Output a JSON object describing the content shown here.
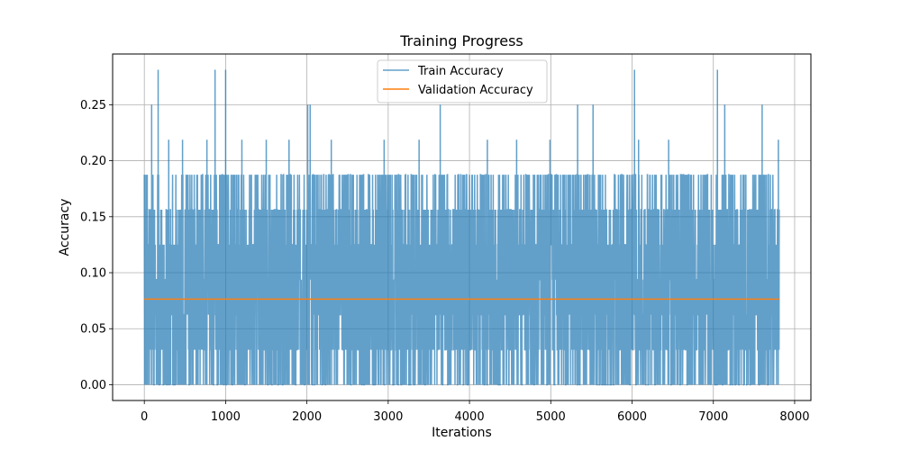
{
  "chart_data": {
    "type": "line",
    "title": "Training Progress",
    "xlabel": "Iterations",
    "ylabel": "Accuracy",
    "xlim": [
      -390,
      8200
    ],
    "ylim": [
      -0.0141,
      0.2953
    ],
    "xticks": [
      0,
      1000,
      2000,
      3000,
      4000,
      5000,
      6000,
      7000,
      8000
    ],
    "xtick_labels": [
      "0",
      "1000",
      "2000",
      "3000",
      "4000",
      "5000",
      "6000",
      "7000",
      "8000"
    ],
    "yticks": [
      0.0,
      0.05,
      0.1,
      0.15,
      0.2,
      0.25
    ],
    "ytick_labels": [
      "0.00",
      "0.05",
      "0.10",
      "0.15",
      "0.20",
      "0.25"
    ],
    "grid": true,
    "legend_position": "top-center",
    "series": [
      {
        "name": "Train Accuracy",
        "color": "#1f77b4",
        "opacity": 0.7,
        "x_range": [
          0,
          7810
        ],
        "value_levels": [
          0.0,
          0.03125,
          0.0625,
          0.09375,
          0.125,
          0.15625,
          0.1875,
          0.21875,
          0.25,
          0.28125
        ],
        "band_low": 0.0,
        "band_high": 0.15625,
        "peaks": [
          {
            "x": 90,
            "y": 0.25
          },
          {
            "x": 170,
            "y": 0.28125
          },
          {
            "x": 300,
            "y": 0.21875
          },
          {
            "x": 470,
            "y": 0.21875
          },
          {
            "x": 770,
            "y": 0.21875
          },
          {
            "x": 870,
            "y": 0.28125
          },
          {
            "x": 1000,
            "y": 0.28125
          },
          {
            "x": 1200,
            "y": 0.21875
          },
          {
            "x": 1500,
            "y": 0.21875
          },
          {
            "x": 1780,
            "y": 0.21875
          },
          {
            "x": 2010,
            "y": 0.25
          },
          {
            "x": 2040,
            "y": 0.25
          },
          {
            "x": 2300,
            "y": 0.21875
          },
          {
            "x": 2950,
            "y": 0.21875
          },
          {
            "x": 3380,
            "y": 0.21875
          },
          {
            "x": 3640,
            "y": 0.25
          },
          {
            "x": 4220,
            "y": 0.21875
          },
          {
            "x": 4580,
            "y": 0.21875
          },
          {
            "x": 4990,
            "y": 0.21875
          },
          {
            "x": 5330,
            "y": 0.25
          },
          {
            "x": 5520,
            "y": 0.25
          },
          {
            "x": 6030,
            "y": 0.28125
          },
          {
            "x": 6080,
            "y": 0.21875
          },
          {
            "x": 6450,
            "y": 0.21875
          },
          {
            "x": 7050,
            "y": 0.28125
          },
          {
            "x": 7140,
            "y": 0.25
          },
          {
            "x": 7600,
            "y": 0.25
          },
          {
            "x": 7800,
            "y": 0.21875
          }
        ]
      },
      {
        "name": "Validation Accuracy",
        "color": "#ff7f0e",
        "x": [
          0,
          7810
        ],
        "values": [
          0.0764,
          0.0764
        ]
      }
    ]
  }
}
